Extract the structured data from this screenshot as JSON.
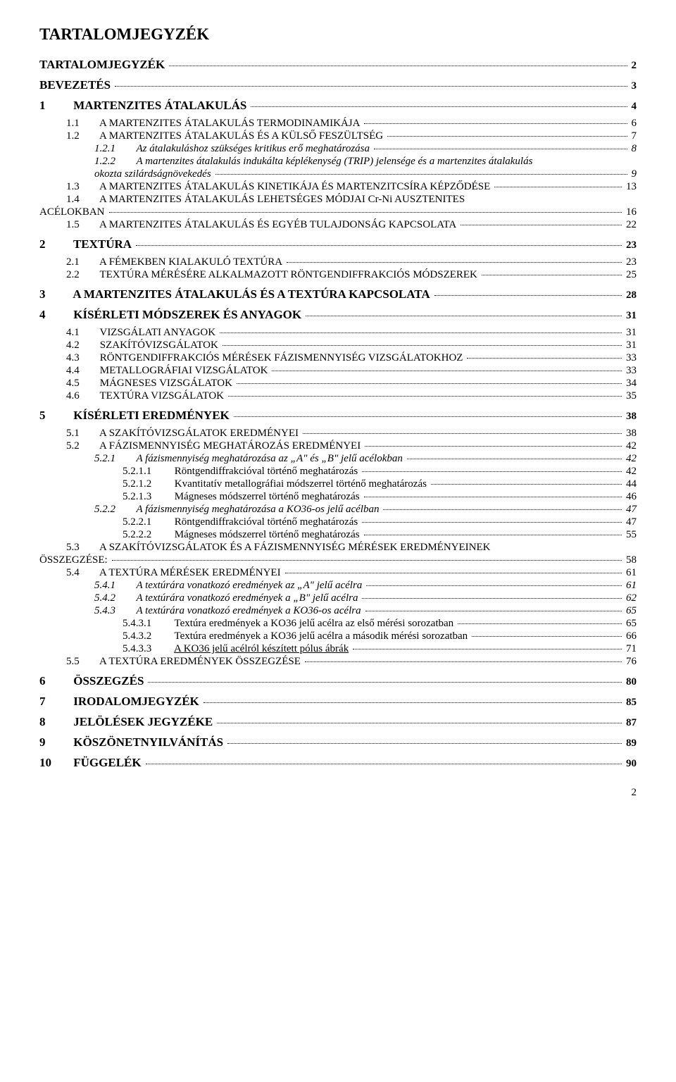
{
  "title": "TARTALOMJEGYZÉK",
  "page_number": "2",
  "toc": [
    {
      "type": "gap",
      "size": "m"
    },
    {
      "level": 0,
      "bold": true,
      "num": "",
      "label": "TARTALOMJEGYZÉK",
      "page": "2"
    },
    {
      "type": "gap",
      "size": "m"
    },
    {
      "level": 0,
      "bold": true,
      "num": "",
      "label": "BEVEZETÉS",
      "page": "3"
    },
    {
      "type": "gap",
      "size": "m"
    },
    {
      "level": 0,
      "bold": true,
      "num": "1",
      "label": "MARTENZITES ÁTALAKULÁS",
      "page": "4"
    },
    {
      "type": "gap",
      "size": "s"
    },
    {
      "level": 1,
      "num": "1.1",
      "label": "A MARTENZITES ÁTALAKULÁS TERMODINAMIKÁJA",
      "page": "6"
    },
    {
      "level": 1,
      "num": "1.2",
      "label": "A MARTENZITES ÁTALAKULÁS ÉS A KÜLSŐ FESZÜLTSÉG",
      "page": "7"
    },
    {
      "level": 2,
      "italic": true,
      "num": "1.2.1",
      "label": "Az átalakuláshoz szükséges kritikus erő meghatározása",
      "page": "8"
    },
    {
      "level": 2,
      "italic": true,
      "num": "1.2.2",
      "label_wrap": [
        "A martenzites átalakulás indukálta képlékenység (TRIP) jelensége és a martenzites átalakulás",
        "okozta szilárdságnövekedés"
      ],
      "page": "9"
    },
    {
      "level": 1,
      "num": "1.3",
      "label": "A MARTENZITES ÁTALAKULÁS KINETIKÁJA ÉS MARTENZITCSÍRA KÉPZŐDÉSE",
      "page": "13"
    },
    {
      "level": 1,
      "num": "1.4",
      "label_wrap_sc": [
        "A MARTENZITES ÁTALAKULÁS LEHETSÉGES MÓDJAI Cr-Ni AUSZTENITES",
        "ACÉLOKBAN"
      ],
      "page": "16"
    },
    {
      "level": 1,
      "num": "1.5",
      "label": "A MARTENZITES ÁTALAKULÁS ÉS EGYÉB TULAJDONSÁG KAPCSOLATA",
      "page": "22"
    },
    {
      "type": "gap",
      "size": "m"
    },
    {
      "level": 0,
      "bold": true,
      "num": "2",
      "label": "TEXTÚRA",
      "page": "23"
    },
    {
      "type": "gap",
      "size": "s"
    },
    {
      "level": 1,
      "num": "2.1",
      "label": "A FÉMEKBEN KIALAKULÓ TEXTÚRA",
      "page": "23"
    },
    {
      "level": 1,
      "num": "2.2",
      "label": "TEXTÚRA MÉRÉSÉRE ALKALMAZOTT RÖNTGENDIFFRAKCIÓS MÓDSZEREK",
      "page": "25"
    },
    {
      "type": "gap",
      "size": "m"
    },
    {
      "level": 0,
      "bold": true,
      "num": "3",
      "label": "A MARTENZITES ÁTALAKULÁS ÉS A TEXTÚRA KAPCSOLATA",
      "page": "28"
    },
    {
      "type": "gap",
      "size": "m"
    },
    {
      "level": 0,
      "bold": true,
      "num": "4",
      "label": "KÍSÉRLETI MÓDSZEREK ÉS ANYAGOK",
      "page": "31"
    },
    {
      "type": "gap",
      "size": "s"
    },
    {
      "level": 1,
      "num": "4.1",
      "label": "VIZSGÁLATI ANYAGOK",
      "page": "31"
    },
    {
      "level": 1,
      "num": "4.2",
      "label": "SZAKÍTÓVIZSGÁLATOK",
      "page": "31"
    },
    {
      "level": 1,
      "num": "4.3",
      "label": "RÖNTGENDIFFRAKCIÓS MÉRÉSEK FÁZISMENNYISÉG VIZSGÁLATOKHOZ",
      "page": "33"
    },
    {
      "level": 1,
      "num": "4.4",
      "label": "METALLOGRÁFIAI VIZSGÁLATOK",
      "page": "33"
    },
    {
      "level": 1,
      "num": "4.5",
      "label": "MÁGNESES VIZSGÁLATOK",
      "page": "34"
    },
    {
      "level": 1,
      "num": "4.6",
      "label": "TEXTÚRA VIZSGÁLATOK",
      "page": "35"
    },
    {
      "type": "gap",
      "size": "m"
    },
    {
      "level": 0,
      "bold": true,
      "num": "5",
      "label": "KÍSÉRLETI EREDMÉNYEK",
      "page": "38"
    },
    {
      "type": "gap",
      "size": "s"
    },
    {
      "level": 1,
      "num": "5.1",
      "label": "A SZAKÍTÓVIZSGÁLATOK EREDMÉNYEI",
      "page": "38"
    },
    {
      "level": 1,
      "num": "5.2",
      "label": "A FÁZISMENNYISÉG MEGHATÁROZÁS EREDMÉNYEI",
      "page": "42"
    },
    {
      "level": 2,
      "italic": true,
      "num": "5.2.1",
      "label": "A fázismennyiség meghatározása az „A\" és „B\" jelű acélokban",
      "page": "42"
    },
    {
      "level": 3,
      "num": "5.2.1.1",
      "label": "Röntgendiffrakcióval történő meghatározás",
      "page": "42"
    },
    {
      "level": 3,
      "num": "5.2.1.2",
      "label": "Kvantitatív metallográfiai módszerrel történő meghatározás",
      "page": "44"
    },
    {
      "level": 3,
      "num": "5.2.1.3",
      "label": "Mágneses módszerrel történő meghatározás",
      "page": "46"
    },
    {
      "level": 2,
      "italic": true,
      "num": "5.2.2",
      "label": "A fázismennyiség meghatározása a KO36-os jelű acélban",
      "page": "47"
    },
    {
      "level": 3,
      "num": "5.2.2.1",
      "label": "Röntgendiffrakcióval történő meghatározás",
      "page": "47"
    },
    {
      "level": 3,
      "num": "5.2.2.2",
      "label": "Mágneses módszerrel történő meghatározás",
      "page": "55"
    },
    {
      "level": 1,
      "num": "5.3",
      "label_wrap_sc": [
        "A SZAKÍTÓVIZSGÁLATOK ÉS A FÁZISMENNYISÉG MÉRÉSEK EREDMÉNYEINEK",
        "ÖSSZEGZÉSE:"
      ],
      "page": "58"
    },
    {
      "level": 1,
      "num": "5.4",
      "label": "A TEXTÚRA MÉRÉSEK EREDMÉNYEI",
      "page": "61"
    },
    {
      "level": 2,
      "italic": true,
      "num": "5.4.1",
      "label": "A textúrára vonatkozó eredmények az „A\" jelű acélra",
      "page": "61"
    },
    {
      "level": 2,
      "italic": true,
      "num": "5.4.2",
      "label": "A textúrára vonatkozó eredmények a „B\" jelű acélra",
      "page": "62"
    },
    {
      "level": 2,
      "italic": true,
      "num": "5.4.3",
      "label": "A textúrára vonatkozó eredmények a KO36-os acélra",
      "page": "65"
    },
    {
      "level": 3,
      "num": "5.4.3.1",
      "label": "Textúra eredmények a KO36 jelű acélra az első mérési sorozatban",
      "page": "65"
    },
    {
      "level": 3,
      "num": "5.4.3.2",
      "label": "Textúra eredmények a KO36 jelű acélra a második mérési sorozatban",
      "page": "66"
    },
    {
      "level": 3,
      "underline": true,
      "num": "5.4.3.3",
      "label": "A KO36 jelű acélról készített pólus ábrák",
      "page": "71"
    },
    {
      "level": 1,
      "num": "5.5",
      "label": "A TEXTÚRA EREDMÉNYEK ÖSSZEGZÉSE",
      "page": "76"
    },
    {
      "type": "gap",
      "size": "m"
    },
    {
      "level": 0,
      "bold": true,
      "num": "6",
      "label": "ÖSSZEGZÉS",
      "page": "80"
    },
    {
      "type": "gap",
      "size": "m"
    },
    {
      "level": 0,
      "bold": true,
      "num": "7",
      "label": "IRODALOMJEGYZÉK",
      "page": "85"
    },
    {
      "type": "gap",
      "size": "m"
    },
    {
      "level": 0,
      "bold": true,
      "num": "8",
      "label": "JELÖLÉSEK JEGYZÉKE",
      "page": "87"
    },
    {
      "type": "gap",
      "size": "m"
    },
    {
      "level": 0,
      "bold": true,
      "num": "9",
      "label": "KÖSZÖNETNYILVÁNÍTÁS",
      "page": "89"
    },
    {
      "type": "gap",
      "size": "m"
    },
    {
      "level": 0,
      "bold": true,
      "num": "10",
      "label": "FÜGGELÉK",
      "page": "90"
    }
  ]
}
